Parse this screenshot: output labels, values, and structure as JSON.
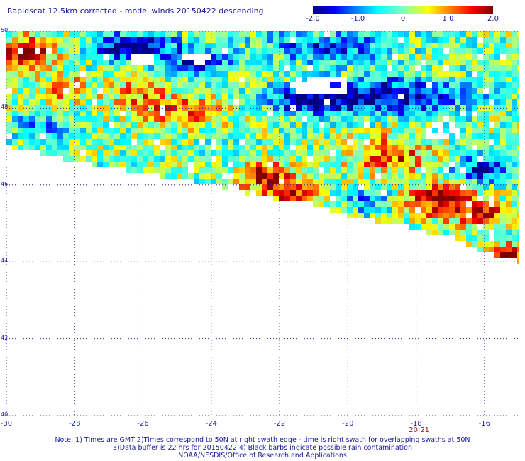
{
  "title": "Rapidscat 12.5km corrected - model winds 20150422 descending",
  "colorbar": {
    "labels": [
      "-2.0",
      "-1.0",
      "0",
      "1.0",
      "2.0"
    ],
    "values": [
      -2.0,
      -1.0,
      0,
      1.0,
      2.0
    ],
    "range": [
      -2.0,
      2.0
    ]
  },
  "map": {
    "lon_range": [
      -30,
      -15
    ],
    "lat_range": [
      40,
      50
    ],
    "lon_ticks": [
      -30,
      -28,
      -26,
      -24,
      -22,
      -20,
      -18,
      -16
    ],
    "lat_ticks": [
      40,
      42,
      44,
      46,
      48,
      50
    ],
    "lon_labels": [
      "-30",
      "-28",
      "-26",
      "-24",
      "-22",
      "-20",
      "-18",
      "-16"
    ],
    "lat_labels": [
      "40",
      "42",
      "44",
      "46",
      "48",
      "50"
    ],
    "swath_lower_edge": [
      [
        -30,
        47.0
      ],
      [
        -28,
        46.6
      ],
      [
        -26,
        46.3
      ],
      [
        -24,
        46.0
      ],
      [
        -22,
        45.6
      ],
      [
        -21,
        45.5
      ],
      [
        -20,
        45.2
      ],
      [
        -18.2,
        44.9
      ],
      [
        -17,
        44.6
      ],
      [
        -15.5,
        44.1
      ],
      [
        -15,
        44.0
      ]
    ],
    "swath_upper_edge": [
      [
        -30,
        50
      ],
      [
        -15,
        50
      ]
    ],
    "features": [
      {
        "kind": "positive",
        "lon": -29.4,
        "lat": 49.4,
        "rx": 0.8,
        "ry": 0.45,
        "amp": 1.9
      },
      {
        "kind": "positive",
        "lon": -28.2,
        "lat": 48.5,
        "rx": 0.6,
        "ry": 0.3,
        "amp": 1.1
      },
      {
        "kind": "negative",
        "lon": -26.3,
        "lat": 49.6,
        "rx": 1.2,
        "ry": 0.35,
        "amp": -2.0
      },
      {
        "kind": "negative",
        "lon": -24.4,
        "lat": 49.2,
        "rx": 1.0,
        "ry": 0.35,
        "amp": -1.4
      },
      {
        "kind": "positive",
        "lon": -26.2,
        "lat": 48.4,
        "rx": 1.0,
        "ry": 0.4,
        "amp": 0.9
      },
      {
        "kind": "positive",
        "lon": -24.8,
        "lat": 47.9,
        "rx": 1.3,
        "ry": 0.35,
        "amp": 1.2
      },
      {
        "kind": "negative",
        "lon": -29.0,
        "lat": 47.5,
        "rx": 0.9,
        "ry": 0.3,
        "amp": -1.0
      },
      {
        "kind": "negative",
        "lon": -20.6,
        "lat": 49.6,
        "rx": 1.8,
        "ry": 0.4,
        "amp": -1.3
      },
      {
        "kind": "negative",
        "lon": -18.8,
        "lat": 48.3,
        "rx": 2.2,
        "ry": 0.45,
        "amp": -2.0
      },
      {
        "kind": "negative",
        "lon": -21.3,
        "lat": 48.2,
        "rx": 1.0,
        "ry": 0.3,
        "amp": -1.7
      },
      {
        "kind": "positive",
        "lon": -22.4,
        "lat": 46.2,
        "rx": 0.9,
        "ry": 0.35,
        "amp": 1.8
      },
      {
        "kind": "positive",
        "lon": -21.6,
        "lat": 45.7,
        "rx": 0.8,
        "ry": 0.25,
        "amp": 1.8
      },
      {
        "kind": "positive",
        "lon": -18.8,
        "lat": 46.8,
        "rx": 1.2,
        "ry": 0.5,
        "amp": 1.3
      },
      {
        "kind": "positive",
        "lon": -17.2,
        "lat": 45.6,
        "rx": 1.0,
        "ry": 0.45,
        "amp": 2.0
      },
      {
        "kind": "positive",
        "lon": -16.0,
        "lat": 45.2,
        "rx": 0.6,
        "ry": 0.35,
        "amp": 1.5
      },
      {
        "kind": "negative",
        "lon": -16.0,
        "lat": 46.4,
        "rx": 0.9,
        "ry": 0.4,
        "amp": -1.5
      },
      {
        "kind": "negative",
        "lon": -19.4,
        "lat": 45.6,
        "rx": 0.7,
        "ry": 0.3,
        "amp": -0.9
      },
      {
        "kind": "positive",
        "lon": -15.3,
        "lat": 44.2,
        "rx": 0.4,
        "ry": 0.25,
        "amp": 1.9
      }
    ],
    "gaps": [
      {
        "lon": -20.8,
        "lat": 48.6,
        "rx": 0.9,
        "ry": 0.25
      },
      {
        "lon": -26.0,
        "lat": 49.3,
        "rx": 0.35,
        "ry": 0.18
      },
      {
        "lon": -24.4,
        "lat": 49.3,
        "rx": 0.4,
        "ry": 0.15
      },
      {
        "lon": -17.2,
        "lat": 47.4,
        "rx": 0.5,
        "ry": 0.25
      }
    ]
  },
  "time_label": "20:21",
  "time_lon": -17.8,
  "notes": [
    "Note: 1) Times are GMT 2)Times correspond to 50N at right swath edge - time is right swath for overlapping swaths at 50N",
    "3)Data buffer is 22 hrs for 20150422 4) Black barbs indicate possible rain contamination",
    "NOAA/NESDIS/Office of Research and Applications"
  ]
}
